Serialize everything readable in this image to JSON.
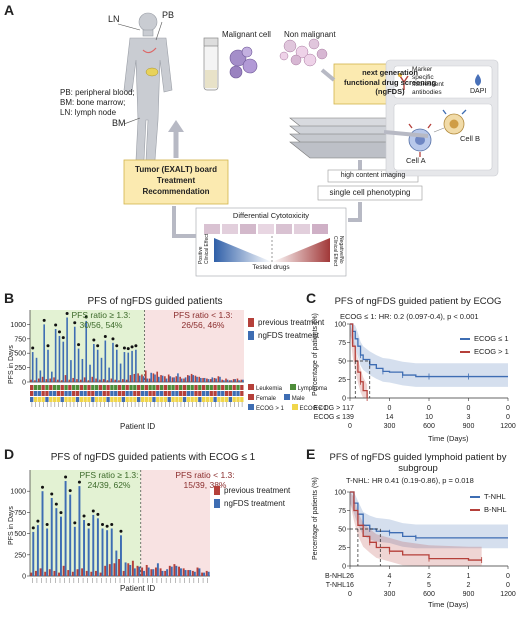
{
  "panelA": {
    "letter": "A",
    "site_labels": {
      "ln": "LN",
      "pb": "PB",
      "bm": "BM"
    },
    "legend_lines": [
      "PB: peripheral blood;",
      "BM: bone marrow;",
      "LN: lymph node"
    ],
    "malignant": "Malignant cell",
    "non_malignant": "Non malignant",
    "ngfds_box": [
      "next generation",
      "functional drug screening",
      "(ngFDS)"
    ],
    "antibodies": [
      "Marker",
      "specific",
      "fluorescent",
      "antibodies"
    ],
    "dapi": "DAPI",
    "cell_a": "Cell A",
    "cell_b": "Cell B",
    "imaging": "high content imaging",
    "phenotyping": "single cell phenotyping",
    "board": [
      "Tumor (EXALT) board",
      "Treatment",
      "Recommendation"
    ],
    "cytotox_title": "Differential Cytotoxicity",
    "tested_drugs": "Tested drugs",
    "positive_effect": [
      "Positive",
      "Clinical Effect"
    ],
    "negative_effect": [
      "Negative/No",
      "Clinical Effect"
    ],
    "colors": {
      "board_fill": "#fbeab0",
      "board_stroke": "#d3b44a",
      "ngfds_fill": "#fbeab0"
    }
  },
  "panelB": {
    "letter": "B",
    "title": "PFS of ngFDS guided patients",
    "ylabel": "PFS in Days",
    "xlabel": "Patient ID",
    "ratio_high": [
      "PFS ratio ≥ 1.3:",
      "30/56, 54%"
    ],
    "ratio_low": [
      "PFS ratio < 1.3:",
      "26/56, 46%"
    ],
    "legend": [
      "previous treatment",
      "ngFDS treatment"
    ],
    "annot_legend": [
      [
        "Leukemia",
        "Lymphoma"
      ],
      [
        "Female",
        "Male"
      ],
      [
        "ECOG > 1",
        "ECOG ≤ 1"
      ]
    ],
    "yticks": [
      "0",
      "250",
      "500",
      "750",
      "1000"
    ]
  },
  "panelC": {
    "letter": "C",
    "title": "PFS of ngFDS guided patient by ECOG",
    "stat": "ECOG ≤ 1: HR: 0.2 (0.097-0.4), p < 0.001",
    "ylabel": "Percentage of patients (%)",
    "xlabel": "Time (Days)",
    "legend": [
      "ECOG ≤ 1",
      "ECOG > 1"
    ],
    "yticks": [
      "0",
      "25",
      "50",
      "75",
      "100"
    ],
    "xticks": [
      "0",
      "300",
      "600",
      "900",
      "1200"
    ],
    "risk_labels": [
      "ECOG > 1",
      "ECOG ≤ 1"
    ],
    "risk_rows": [
      [
        "17",
        "0",
        "0",
        "0",
        "0"
      ],
      [
        "39",
        "14",
        "10",
        "3",
        "0"
      ]
    ]
  },
  "panelD": {
    "letter": "D",
    "title": "PFS of ngFDS guided patients with ECOG ≤ 1",
    "ylabel": "PFS in Days",
    "xlabel": "Patient ID",
    "ratio_high": [
      "PFS ratio ≥ 1.3:",
      "24/39, 62%"
    ],
    "ratio_low": [
      "PFS ratio < 1.3:",
      "15/39, 38%"
    ],
    "legend": [
      "previous treatment",
      "ngFDS treatment"
    ],
    "yticks": [
      "0",
      "250",
      "500",
      "750",
      "1000"
    ]
  },
  "panelE": {
    "letter": "E",
    "title": [
      "PFS of ngFDS guided lymphoid patient by",
      "subgroup"
    ],
    "stat": "T-NHL: HR 0.41 (0.19-0.86), p = 0.018",
    "ylabel": "Percentage of patients (%)",
    "xlabel": "Time (Days)",
    "legend": [
      "T-NHL",
      "B-NHL"
    ],
    "yticks": [
      "0",
      "25",
      "50",
      "75",
      "100"
    ],
    "xticks": [
      "0",
      "300",
      "600",
      "900",
      "1200"
    ],
    "risk_labels": [
      "B-NHL",
      "T-NHL"
    ],
    "risk_rows": [
      [
        "26",
        "4",
        "2",
        "1",
        "0"
      ],
      [
        "16",
        "7",
        "5",
        "2",
        "0"
      ]
    ]
  },
  "colors": {
    "previous": "#b5403a",
    "ngfds": "#3e6db3",
    "green_zone": "#e3f2d3",
    "pink_zone": "#f8e2e2",
    "leukemia": "#b5403a",
    "lymphoma": "#4e8d3a",
    "female": "#b5403a",
    "male": "#3e6db3",
    "ecog_gt1": "#3e6db3",
    "ecog_le1": "#f0d64a",
    "km_blue": "#3e6db3",
    "km_red": "#b5403a"
  },
  "chart_data": [
    {
      "type": "bar",
      "id": "B",
      "title": "PFS of ngFDS guided patients",
      "ylabel": "PFS in Days",
      "xlabel": "Patient ID",
      "ylim": [
        0,
        1250
      ],
      "series": [
        {
          "name": "previous treatment",
          "values": [
            40,
            30,
            60,
            90,
            50,
            60,
            80,
            40,
            30,
            120,
            40,
            70,
            50,
            40,
            80,
            30,
            90,
            60,
            40,
            50,
            30,
            60,
            40,
            30,
            50,
            40,
            120,
            140,
            150,
            130,
            200,
            60,
            150,
            180,
            120,
            100,
            130,
            80,
            100,
            90,
            60,
            120,
            140,
            110,
            90,
            70,
            60,
            50,
            70,
            100,
            40,
            60,
            30,
            50,
            60,
            40
          ]
        },
        {
          "name": "ngFDS treatment",
          "values": [
            520,
            420,
            200,
            1000,
            560,
            180,
            920,
            800,
            700,
            1120,
            380,
            960,
            580,
            400,
            1060,
            300,
            660,
            560,
            420,
            720,
            250,
            680,
            560,
            320,
            520,
            510,
            540,
            560,
            110,
            100,
            60,
            160,
            130,
            90,
            110,
            60,
            100,
            80,
            150,
            60,
            80,
            110,
            120,
            90,
            70,
            70,
            50,
            80,
            60,
            90,
            30,
            40,
            30,
            50,
            30,
            40
          ]
        }
      ]
    },
    {
      "type": "line",
      "id": "C",
      "title": "PFS of ngFDS guided patient by ECOG",
      "xlabel": "Time (Days)",
      "ylabel": "Percentage of patients (%)",
      "xlim": [
        0,
        1200
      ],
      "ylim": [
        0,
        100
      ],
      "series": [
        {
          "name": "ECOG ≤ 1",
          "x": [
            0,
            20,
            40,
            60,
            80,
            100,
            150,
            200,
            250,
            300,
            400,
            500,
            600,
            700,
            900,
            1200
          ],
          "y": [
            100,
            90,
            80,
            70,
            58,
            52,
            45,
            40,
            36,
            35,
            31,
            29,
            29,
            29,
            29,
            29
          ]
        },
        {
          "name": "ECOG > 1",
          "x": [
            0,
            20,
            40,
            60,
            80,
            100,
            130
          ],
          "y": [
            100,
            70,
            50,
            35,
            22,
            10,
            0
          ]
        }
      ]
    },
    {
      "type": "bar",
      "id": "D",
      "title": "PFS of ngFDS guided patients with ECOG ≤ 1",
      "ylabel": "PFS in Days",
      "xlabel": "Patient ID",
      "ylim": [
        0,
        1250
      ],
      "series": [
        {
          "name": "previous treatment",
          "values": [
            40,
            60,
            90,
            50,
            80,
            60,
            40,
            120,
            70,
            50,
            80,
            90,
            60,
            50,
            60,
            40,
            120,
            140,
            150,
            200,
            60,
            150,
            180,
            120,
            100,
            130,
            80,
            100,
            90,
            60,
            120,
            140,
            110,
            90,
            70,
            60,
            100,
            40,
            60
          ]
        },
        {
          "name": "ngFDS treatment",
          "values": [
            520,
            600,
            1000,
            560,
            920,
            800,
            700,
            1120,
            960,
            580,
            1060,
            660,
            560,
            720,
            680,
            560,
            540,
            560,
            300,
            480,
            160,
            130,
            90,
            110,
            60,
            100,
            80,
            150,
            60,
            80,
            110,
            120,
            90,
            70,
            70,
            50,
            90,
            40,
            50
          ]
        }
      ]
    },
    {
      "type": "line",
      "id": "E",
      "title": "PFS of ngFDS guided lymphoid patient by subgroup",
      "xlabel": "Time (Days)",
      "ylabel": "Percentage of patients (%)",
      "xlim": [
        0,
        1200
      ],
      "ylim": [
        0,
        100
      ],
      "series": [
        {
          "name": "T-NHL",
          "x": [
            0,
            30,
            60,
            100,
            150,
            200,
            300,
            400,
            500,
            1200
          ],
          "y": [
            100,
            85,
            70,
            55,
            50,
            47,
            45,
            40,
            38,
            38
          ]
        },
        {
          "name": "B-NHL",
          "x": [
            0,
            30,
            60,
            100,
            150,
            200,
            300,
            400,
            600,
            900,
            1000
          ],
          "y": [
            100,
            75,
            55,
            40,
            32,
            25,
            20,
            15,
            10,
            8,
            8
          ]
        }
      ]
    }
  ]
}
